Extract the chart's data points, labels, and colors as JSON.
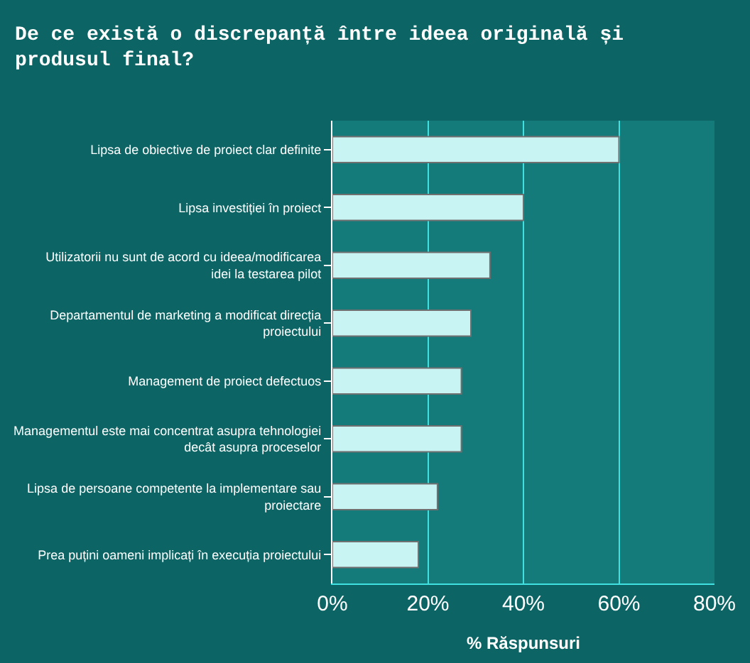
{
  "chart_data": {
    "type": "bar",
    "orientation": "horizontal",
    "title": "De ce există o discrepanță între ideea originală și produsul final?",
    "xlabel": "% Răspunsuri",
    "categories": [
      "Lipsa de obiective de proiect clar definite",
      "Lipsa investiției în proiect",
      "Utilizatorii nu sunt de acord cu ideea/modificarea idei la testarea pilot",
      "Departamentul de marketing a modificat direcția proiectului",
      "Management de proiect defectuos",
      "Managementul este mai concentrat asupra tehnologiei decât asupra proceselor",
      "Lipsa de persoane competente la implementare sau proiectare",
      "Prea puțini oameni implicați în execuția proiectului"
    ],
    "values": [
      60,
      40,
      33,
      29,
      27,
      27,
      22,
      18
    ],
    "color": "#c8f4f4",
    "xlim": [
      0,
      80
    ],
    "xticks": [
      {
        "value": 0,
        "label": "0%"
      },
      {
        "value": 20,
        "label": "20%"
      },
      {
        "value": 40,
        "label": "40%"
      },
      {
        "value": 60,
        "label": "60%"
      },
      {
        "value": 80,
        "label": "80%"
      }
    ],
    "grid": "x"
  }
}
